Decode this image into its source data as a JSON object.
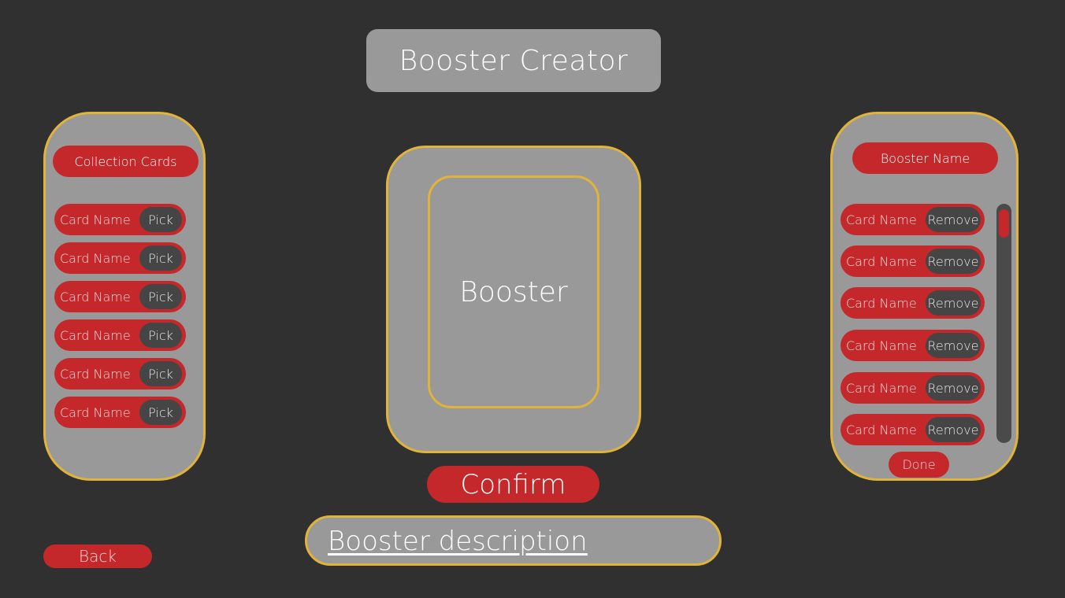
{
  "header": {
    "title": "Booster Creator"
  },
  "collection": {
    "title": "Collection Cards",
    "items": [
      {
        "name": "Card Name",
        "action": "Pick"
      },
      {
        "name": "Card Name",
        "action": "Pick"
      },
      {
        "name": "Card Name",
        "action": "Pick"
      },
      {
        "name": "Card Name",
        "action": "Pick"
      },
      {
        "name": "Card Name",
        "action": "Pick"
      },
      {
        "name": "Card Name",
        "action": "Pick"
      }
    ]
  },
  "booster": {
    "label": "Booster",
    "confirm_label": "Confirm",
    "description_placeholder": "Booster description"
  },
  "booster_list": {
    "title": "Booster Name",
    "items": [
      {
        "name": "Card Name",
        "action": "Remove"
      },
      {
        "name": "Card Name",
        "action": "Remove"
      },
      {
        "name": "Card Name",
        "action": "Remove"
      },
      {
        "name": "Card Name",
        "action": "Remove"
      },
      {
        "name": "Card Name",
        "action": "Remove"
      },
      {
        "name": "Card Name",
        "action": "Remove"
      }
    ],
    "done_label": "Done"
  },
  "footer": {
    "back_label": "Back"
  },
  "colors": {
    "background": "#303030",
    "panel": "#999999",
    "accent_red": "#c4282b",
    "border_gold": "#e0b33a",
    "button_dark": "#454545"
  }
}
